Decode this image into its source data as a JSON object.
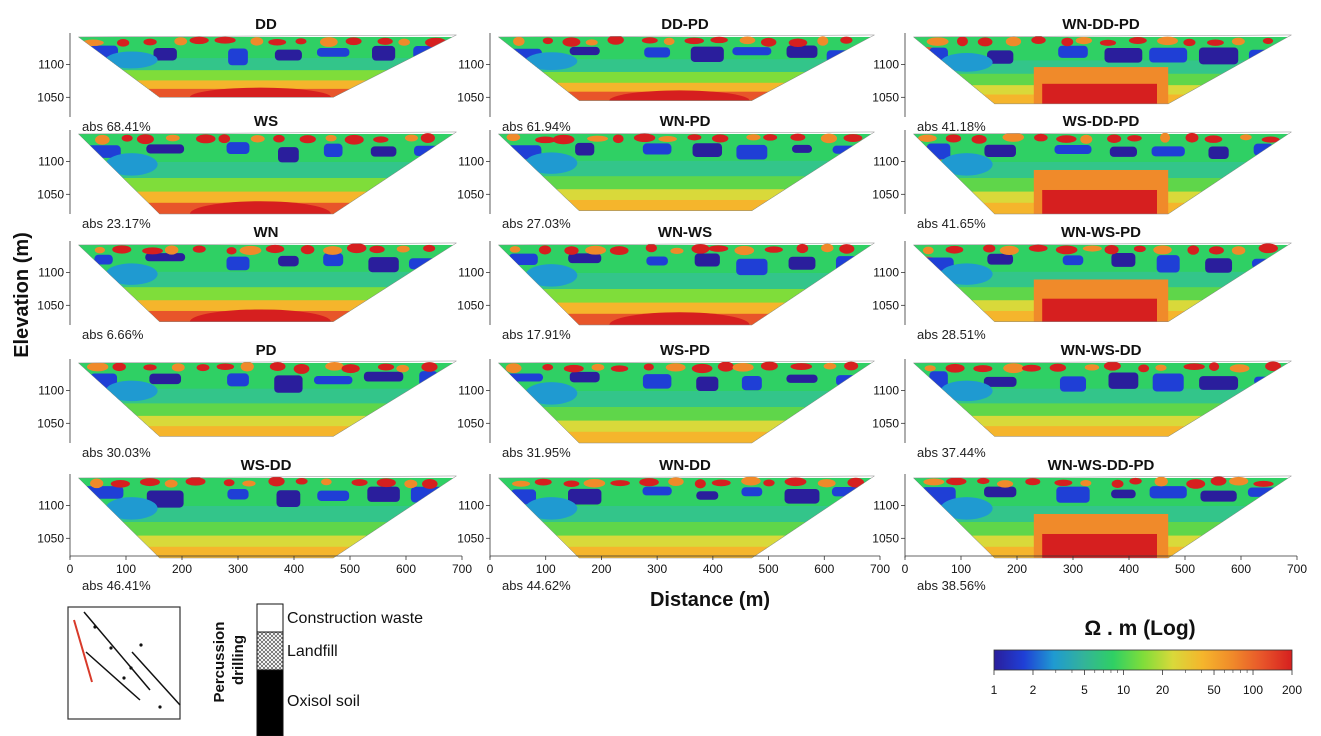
{
  "figure": {
    "ylabel": "Elevation (m)",
    "xlabel": "Distance (m)",
    "y_ticks": [
      "1100",
      "1050"
    ],
    "x_ticks": [
      "0",
      "100",
      "200",
      "300",
      "400",
      "500",
      "600",
      "700"
    ]
  },
  "chart_data": {
    "type": "heatmap",
    "xlim": [
      0,
      700
    ],
    "ylim": [
      1020,
      1145
    ],
    "y_ticks": [
      1050,
      1100
    ],
    "x_ticks": [
      0,
      100,
      200,
      300,
      400,
      500,
      600,
      700
    ],
    "panels": [
      {
        "title": "DD",
        "abs": "abs 68.41%",
        "bottom": "high",
        "dipole": false,
        "depth": 1050
      },
      {
        "title": "DD-PD",
        "abs": "abs 61.94%",
        "bottom": "high",
        "dipole": false,
        "depth": 1045
      },
      {
        "title": "WN-DD-PD",
        "abs": "abs 41.18%",
        "bottom": "mixed",
        "dipole": true,
        "depth": 1040
      },
      {
        "title": "WS",
        "abs": "abs 23.17%",
        "bottom": "high",
        "dipole": false,
        "depth": 1020
      },
      {
        "title": "WN-PD",
        "abs": "abs 27.03%",
        "bottom": "mid",
        "dipole": false,
        "depth": 1025
      },
      {
        "title": "WS-DD-PD",
        "abs": "abs 41.65%",
        "bottom": "mixed",
        "dipole": true,
        "depth": 1020
      },
      {
        "title": "WN",
        "abs": "abs 6.66%",
        "bottom": "high",
        "dipole": false,
        "depth": 1025
      },
      {
        "title": "WN-WS",
        "abs": "abs 17.91%",
        "bottom": "high",
        "dipole": false,
        "depth": 1020
      },
      {
        "title": "WN-WS-PD",
        "abs": "abs 28.51%",
        "bottom": "mixed",
        "dipole": true,
        "depth": 1025
      },
      {
        "title": "PD",
        "abs": "abs 30.03%",
        "bottom": "mid",
        "dipole": false,
        "depth": 1030
      },
      {
        "title": "WS-PD",
        "abs": "abs 31.95%",
        "bottom": "mid",
        "dipole": false,
        "depth": 1020
      },
      {
        "title": "WN-WS-DD",
        "abs": "abs 37.44%",
        "bottom": "mid",
        "dipole": false,
        "depth": 1030
      },
      {
        "title": "WS-DD",
        "abs": "abs 46.41%",
        "bottom": "mid",
        "dipole": false,
        "depth": 1020
      },
      {
        "title": "WN-DD",
        "abs": "abs 44.62%",
        "bottom": "mid",
        "dipole": false,
        "depth": 1020
      },
      {
        "title": "WN-WS-DD-PD",
        "abs": "abs 38.56%",
        "bottom": "mixed",
        "dipole": true,
        "depth": 1020
      }
    ],
    "colorbar": {
      "title": "Ω . m (Log)",
      "min": 1,
      "max": 200,
      "labels": [
        "1",
        "2",
        "5",
        "10",
        "20",
        "50",
        "100",
        "200"
      ],
      "label_values": [
        1,
        2,
        5,
        10,
        20,
        50,
        100,
        200
      ],
      "minor_values": [
        3,
        4,
        6,
        7,
        8,
        9,
        30,
        40,
        60,
        70,
        80,
        90
      ],
      "colors": [
        "#2a1e9c",
        "#1f3fd6",
        "#1f9ad1",
        "#33b39a",
        "#2fd064",
        "#7fdd3a",
        "#d9d93a",
        "#f5b52c",
        "#f08a2a",
        "#e8552a",
        "#d61f1f"
      ]
    }
  },
  "legend": {
    "column_label": "Percussion drilling",
    "layers": [
      {
        "label": "Construction waste",
        "fill": "white"
      },
      {
        "label": "Landfill",
        "fill": "crosshatch"
      },
      {
        "label": "Oxisol soil",
        "fill": "black"
      }
    ]
  }
}
